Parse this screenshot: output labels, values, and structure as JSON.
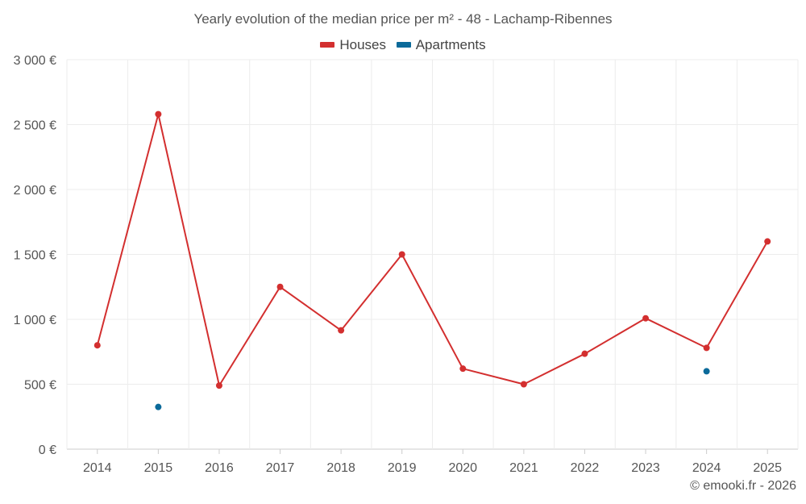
{
  "chart_data": {
    "type": "line",
    "title": "Yearly evolution of the median price per m² - 48 - Lachamp-Ribennes",
    "xlabel": "",
    "ylabel": "",
    "categories": [
      "2014",
      "2015",
      "2016",
      "2017",
      "2018",
      "2019",
      "2020",
      "2021",
      "2022",
      "2023",
      "2024",
      "2025"
    ],
    "ylim": [
      0,
      3000
    ],
    "yticks": [
      0,
      500,
      1000,
      1500,
      2000,
      2500,
      3000
    ],
    "ytick_labels": [
      "0 €",
      "500 €",
      "1 000 €",
      "1 500 €",
      "2 000 €",
      "2 500 €",
      "3 000 €"
    ],
    "grid": true,
    "legend_position": "top-center",
    "series": [
      {
        "name": "Houses",
        "color": "#d32f2f",
        "connect": true,
        "values": [
          800,
          2580,
          490,
          1250,
          915,
          1500,
          620,
          500,
          735,
          1008,
          780,
          1600
        ]
      },
      {
        "name": "Apartments",
        "color": "#0b6a9a",
        "connect": false,
        "values": [
          null,
          325,
          null,
          null,
          null,
          null,
          null,
          null,
          null,
          null,
          600,
          null
        ]
      }
    ]
  },
  "credit": "© emooki.fr - 2026"
}
